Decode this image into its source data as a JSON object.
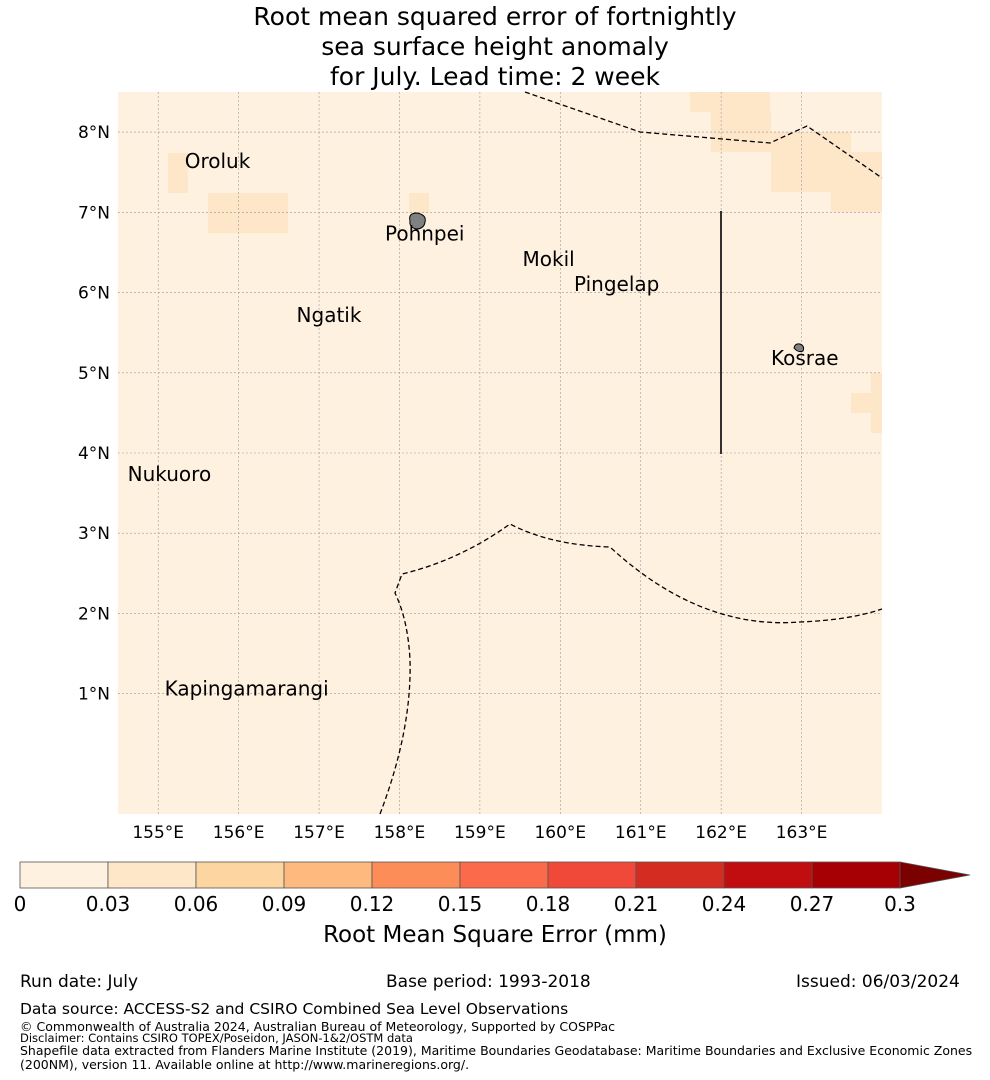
{
  "title": {
    "line1": "Root mean squared error of fortnightly",
    "line2": "sea surface height anomaly",
    "line3": "for July. Lead time: 2 week"
  },
  "axes": {
    "lon_ticks": [
      "155°E",
      "156°E",
      "157°E",
      "158°E",
      "159°E",
      "160°E",
      "161°E",
      "162°E",
      "163°E"
    ],
    "lat_ticks": [
      "8°N",
      "7°N",
      "6°N",
      "5°N",
      "4°N",
      "3°N",
      "2°N",
      "1°N"
    ],
    "lon_range": [
      154.5,
      164.0
    ],
    "lat_range": [
      -0.5,
      8.5
    ],
    "grid": true
  },
  "map": {
    "background_color": "#fff1e0",
    "places": [
      {
        "name": "Oroluk",
        "lon": 155.33,
        "lat": 7.55
      },
      {
        "name": "Pohnpei",
        "lon": 157.82,
        "lat": 6.65
      },
      {
        "name": "Mokil",
        "lon": 159.53,
        "lat": 6.33
      },
      {
        "name": "Pingelap",
        "lon": 160.17,
        "lat": 6.02
      },
      {
        "name": "Ngatik",
        "lon": 156.72,
        "lat": 5.63
      },
      {
        "name": "Kosrae",
        "lon": 162.62,
        "lat": 5.1
      },
      {
        "name": "Nukuoro",
        "lon": 154.62,
        "lat": 3.65
      },
      {
        "name": "Kapingamarangi",
        "lon": 155.08,
        "lat": 0.98
      }
    ]
  },
  "colorbar": {
    "ticks": [
      "0",
      "0.03",
      "0.06",
      "0.09",
      "0.12",
      "0.15",
      "0.18",
      "0.21",
      "0.24",
      "0.27",
      "0.3"
    ],
    "colors": [
      "#fff1e0",
      "#fee6c9",
      "#fdd5a0",
      "#fdb97e",
      "#fc8d58",
      "#fb6a4a",
      "#f0493a",
      "#d52c22",
      "#c10c10",
      "#a60005"
    ],
    "extend_color": "#7b0000",
    "label": "Root Mean Square Error (mm)"
  },
  "footer": {
    "run_date": "Run date: July",
    "base_period": "Base period: 1993-2018",
    "issued": "Issued: 06/03/2024",
    "data_source": "Data source: ACCESS-S2 and CSIRO Combined Sea Level Observations",
    "copyright": "© Commonwealth of Australia 2024, Australian Bureau of Meteorology, Supported by COSPPac",
    "disclaimer": "Disclaimer: Contains CSIRO TOPEX/Poseidon, JASON-1&2/OSTM data",
    "shapefile1": "Shapefile data extracted from Flanders Marine Institute (2019), Maritime Boundaries Geodatabase: Maritime Boundaries and Exclusive Economic Zones",
    "shapefile2": "(200NM), version 11. Available online at http://www.marineregions.org/."
  }
}
